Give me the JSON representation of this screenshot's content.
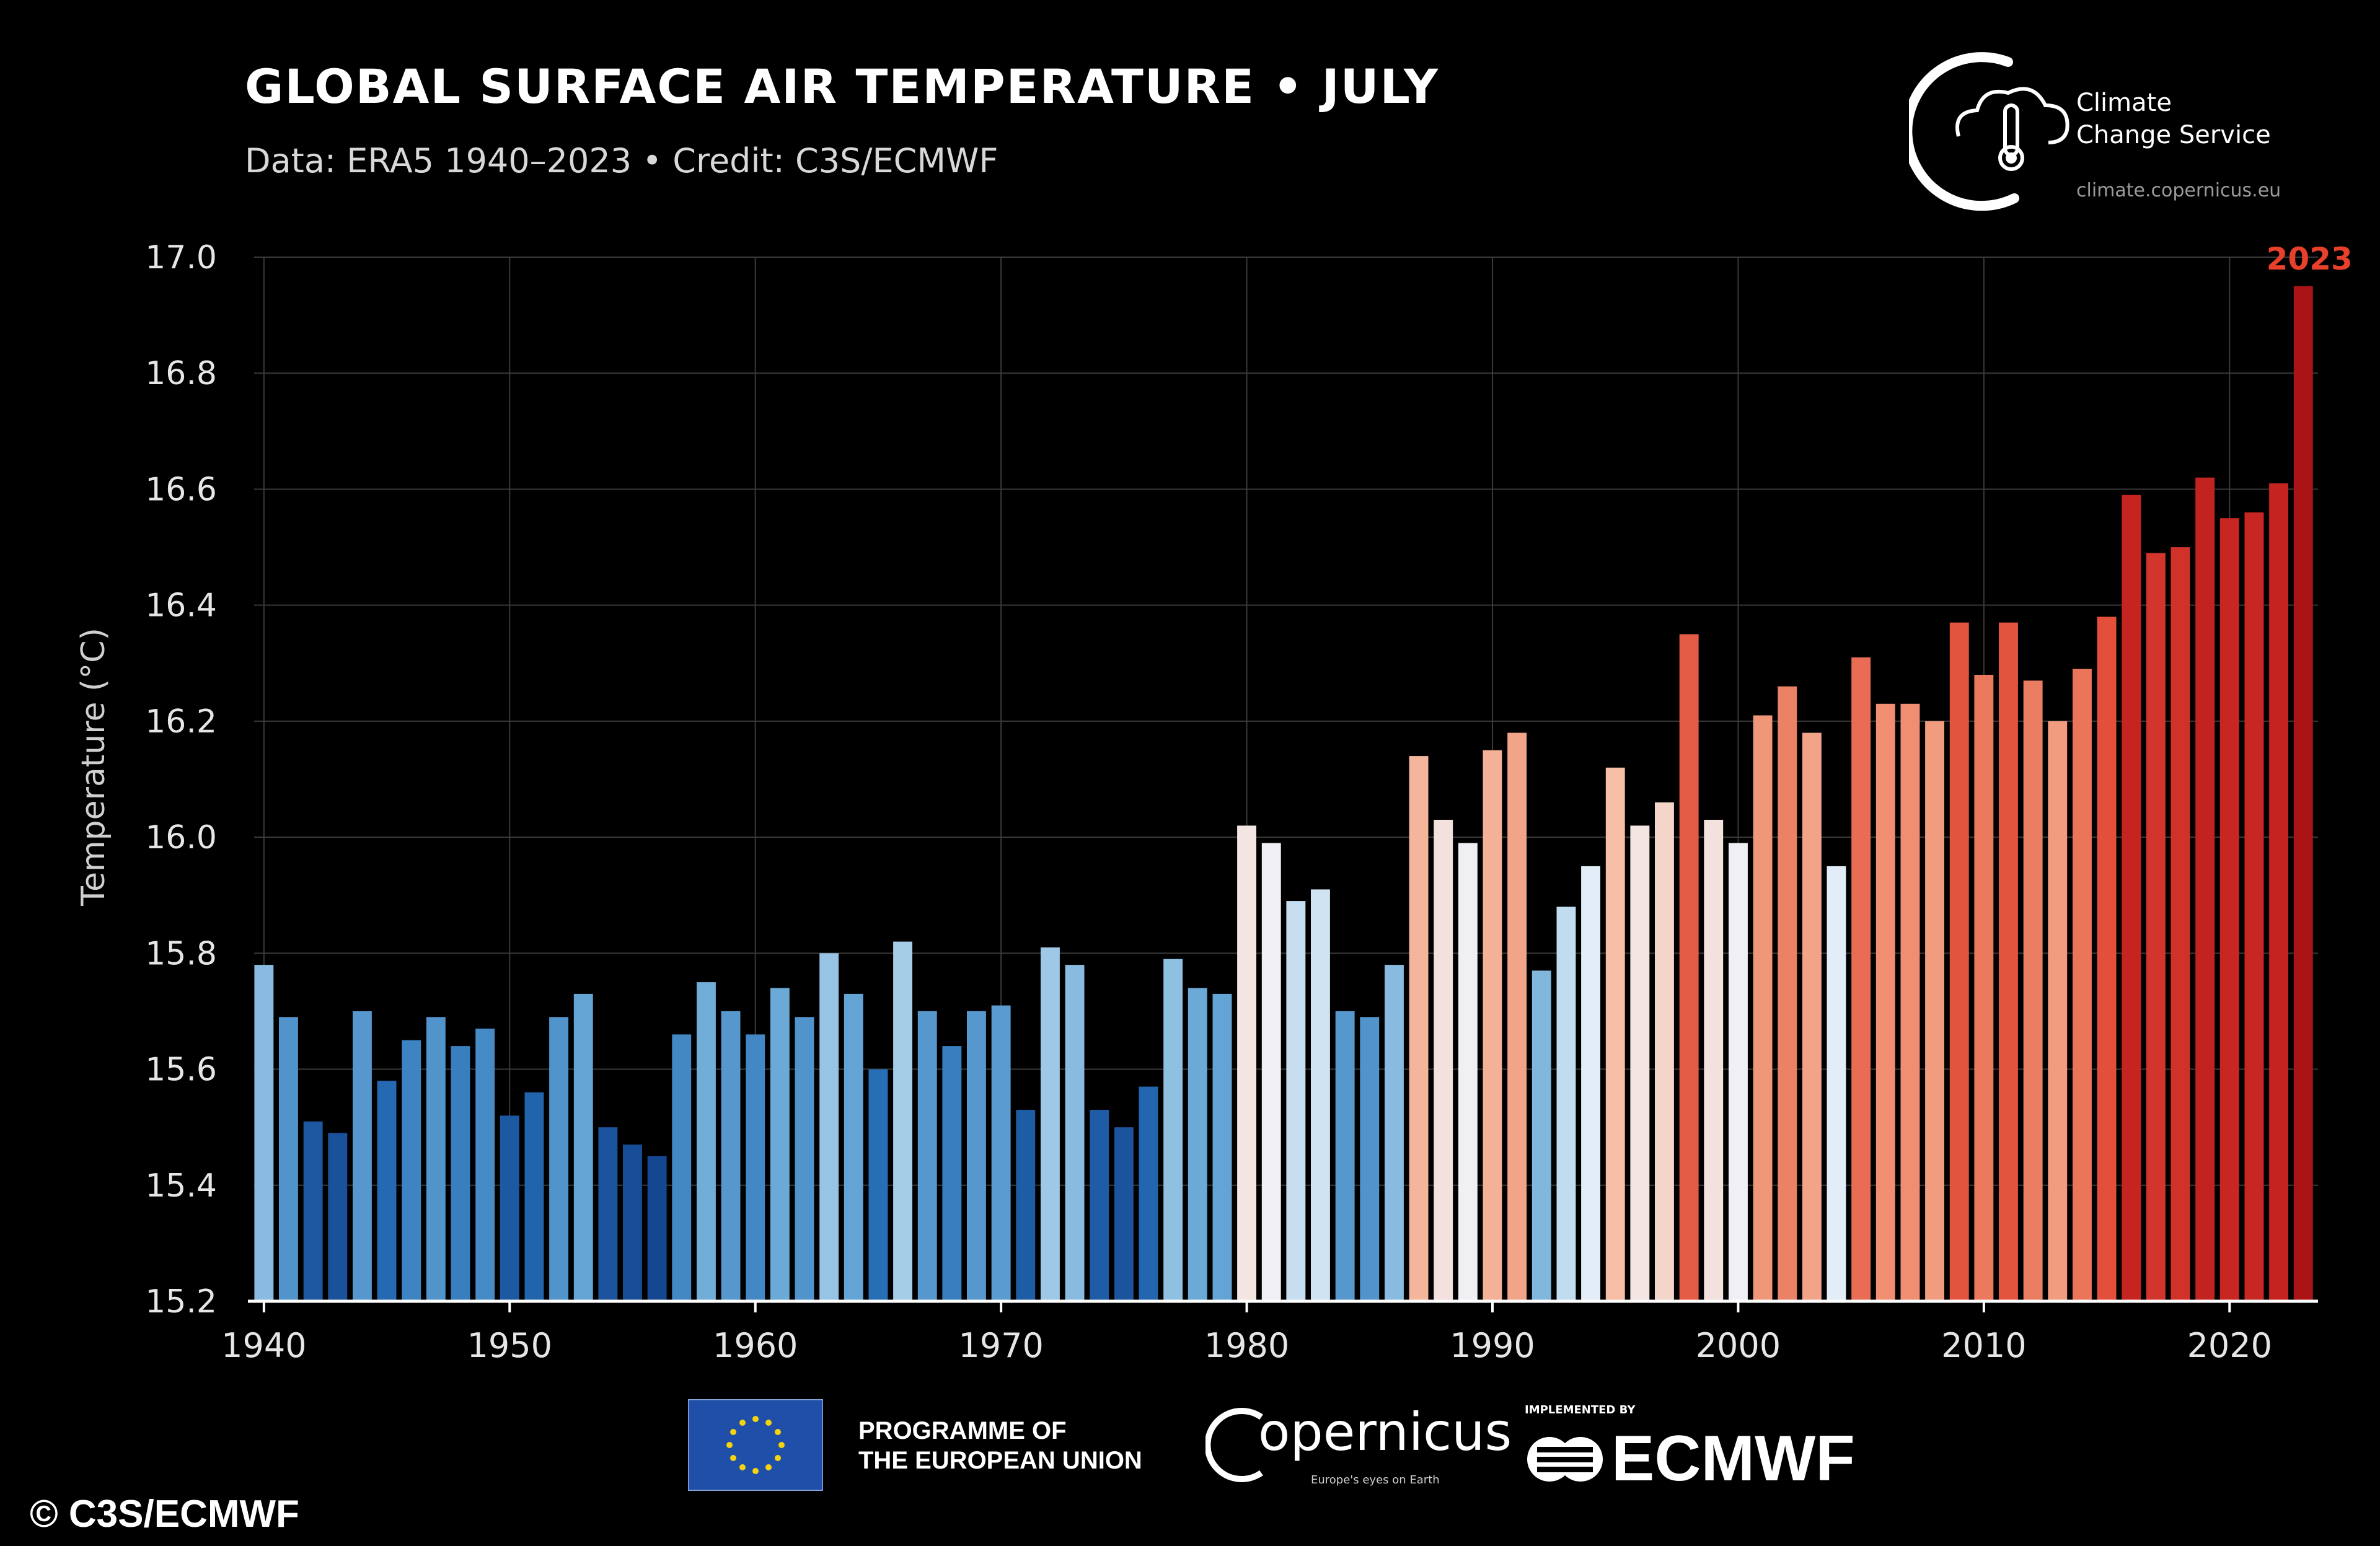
{
  "header": {
    "title": "GLOBAL SURFACE AIR TEMPERATURE • JULY",
    "subtitle": "Data: ERA5 1940–2023 • Credit: C3S/ECMWF"
  },
  "c3s": {
    "line1": "Climate",
    "line2": "Change Service",
    "url": "climate.copernicus.eu"
  },
  "footer": {
    "eu_line1": "PROGRAMME OF",
    "eu_line2": "THE EUROPEAN UNION",
    "copernicus": "opernicus",
    "copernicus_tag": "Europe's eyes on Earth",
    "implemented_by": "IMPLEMENTED BY",
    "ecmwf": "ECMWF",
    "copyright": "© C3S/ECMWF"
  },
  "colors": {
    "background": "#000000",
    "highlight": "#e8402a",
    "axis": "#ffffff",
    "grid": "#3a3a3a"
  },
  "chart_data": {
    "type": "bar",
    "ylabel": "Temperature (°C)",
    "xlabel": "",
    "ylim": [
      15.2,
      17.0
    ],
    "yticks": [
      15.2,
      15.4,
      15.6,
      15.8,
      16.0,
      16.2,
      16.4,
      16.6,
      16.8,
      17.0
    ],
    "xticks": [
      1940,
      1950,
      1960,
      1970,
      1980,
      1990,
      2000,
      2010,
      2020
    ],
    "xlim": [
      1939.6,
      2023.6
    ],
    "grid": true,
    "color_scale": "diverging blue-white-red by temperature",
    "highlight_label": "2023",
    "x": [
      1940,
      1941,
      1942,
      1943,
      1944,
      1945,
      1946,
      1947,
      1948,
      1949,
      1950,
      1951,
      1952,
      1953,
      1954,
      1955,
      1956,
      1957,
      1958,
      1959,
      1960,
      1961,
      1962,
      1963,
      1964,
      1965,
      1966,
      1967,
      1968,
      1969,
      1970,
      1971,
      1972,
      1973,
      1974,
      1975,
      1976,
      1977,
      1978,
      1979,
      1980,
      1981,
      1982,
      1983,
      1984,
      1985,
      1986,
      1987,
      1988,
      1989,
      1990,
      1991,
      1992,
      1993,
      1994,
      1995,
      1996,
      1997,
      1998,
      1999,
      2000,
      2001,
      2002,
      2003,
      2004,
      2005,
      2006,
      2007,
      2008,
      2009,
      2010,
      2011,
      2012,
      2013,
      2014,
      2015,
      2016,
      2017,
      2018,
      2019,
      2020,
      2021,
      2022,
      2023
    ],
    "values": [
      15.78,
      15.69,
      15.51,
      15.49,
      15.7,
      15.58,
      15.65,
      15.69,
      15.64,
      15.67,
      15.52,
      15.56,
      15.69,
      15.73,
      15.5,
      15.47,
      15.45,
      15.66,
      15.75,
      15.7,
      15.66,
      15.74,
      15.69,
      15.8,
      15.73,
      15.6,
      15.82,
      15.7,
      15.64,
      15.7,
      15.71,
      15.53,
      15.81,
      15.78,
      15.53,
      15.5,
      15.57,
      15.79,
      15.74,
      15.73,
      16.02,
      15.99,
      15.89,
      15.91,
      15.7,
      15.69,
      15.78,
      16.14,
      16.03,
      15.99,
      16.15,
      16.18,
      15.77,
      15.88,
      15.95,
      16.12,
      16.02,
      16.06,
      16.35,
      16.03,
      15.99,
      16.21,
      16.26,
      16.18,
      15.95,
      16.31,
      16.23,
      16.23,
      16.2,
      16.37,
      16.28,
      16.37,
      16.27,
      16.2,
      16.29,
      16.38,
      16.59,
      16.49,
      16.5,
      16.62,
      16.55,
      16.56,
      16.61,
      16.95
    ]
  }
}
